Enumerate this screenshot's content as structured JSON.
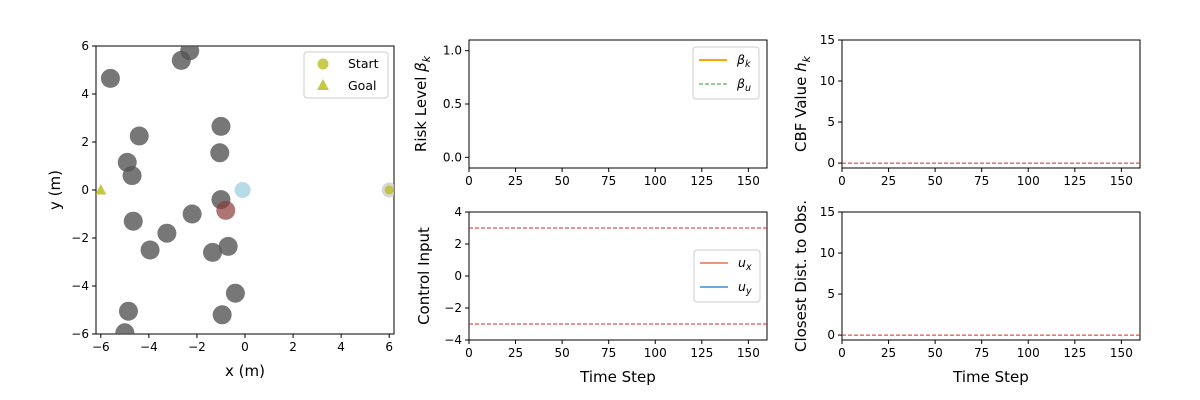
{
  "chart_data": [
    {
      "id": "map",
      "type": "scatter",
      "xlabel": "x (m)",
      "ylabel": "y (m)",
      "xlim": [
        -6.2,
        6.2
      ],
      "ylim": [
        -6,
        6
      ],
      "xticks": [
        -6,
        -4,
        -2,
        0,
        2,
        4,
        6
      ],
      "yticks": [
        -6,
        -4,
        -2,
        0,
        2,
        4,
        6
      ],
      "obstacles": [
        [
          -2.3,
          5.8
        ],
        [
          -2.65,
          5.4
        ],
        [
          -5.6,
          4.65
        ],
        [
          -4.4,
          2.25
        ],
        [
          -1.0,
          2.65
        ],
        [
          -1.05,
          1.55
        ],
        [
          -4.9,
          1.15
        ],
        [
          -4.7,
          0.6
        ],
        [
          -1.0,
          -0.4
        ],
        [
          -2.2,
          -1.0
        ],
        [
          -4.65,
          -1.3
        ],
        [
          -3.25,
          -1.8
        ],
        [
          -3.95,
          -2.5
        ],
        [
          -0.7,
          -2.35
        ],
        [
          -1.35,
          -2.6
        ],
        [
          -0.4,
          -4.3
        ],
        [
          -0.95,
          -5.2
        ],
        [
          -4.85,
          -5.05
        ],
        [
          -5.0,
          -5.95
        ]
      ],
      "moving_obstacle": [
        -0.8,
        -0.85
      ],
      "robot": [
        -0.1,
        0.0
      ],
      "colors": {
        "obstacle": "#555555",
        "moving_obstacle": "#8b3a3a",
        "robot": "#add8e6",
        "start_goal": "#bcbd22"
      },
      "legend": [
        {
          "label": "Start",
          "marker": "circle",
          "x": 6.0,
          "y": 0.0
        },
        {
          "label": "Goal",
          "marker": "triangle",
          "x": -6.0,
          "y": 0.0
        }
      ],
      "legend_position": "top-right"
    },
    {
      "id": "risk",
      "type": "line",
      "ylabel_main": "Risk Level ",
      "ylabel_sym": "β",
      "ylabel_sub": "k",
      "xlim": [
        0,
        160
      ],
      "ylim": [
        -0.1,
        1.1
      ],
      "xticks": [
        0,
        25,
        50,
        75,
        100,
        125,
        150
      ],
      "yticks": [
        "0.0",
        "0.5",
        "1.0"
      ],
      "series": [
        {
          "sym": "β",
          "sub": "k",
          "color": "#ffa500",
          "style": "solid",
          "values": []
        },
        {
          "sym": "β",
          "sub": "u",
          "color": "#2ca02c",
          "style": "dashed",
          "values": []
        }
      ],
      "legend_position": "top-right"
    },
    {
      "id": "cbf",
      "type": "line",
      "ylabel_main": "CBF Value ",
      "ylabel_sym": "h",
      "ylabel_sub": "k",
      "xlim": [
        0,
        160
      ],
      "ylim": [
        -0.6,
        15
      ],
      "xticks": [
        0,
        25,
        50,
        75,
        100,
        125,
        150
      ],
      "yticks": [
        "0",
        "5",
        "10",
        "15"
      ],
      "hlines": [
        {
          "y": 0,
          "color": "#d62728",
          "style": "dashed"
        }
      ]
    },
    {
      "id": "control",
      "type": "line",
      "xlabel": "Time Step",
      "ylabel": "Control Input",
      "xlim": [
        0,
        160
      ],
      "ylim": [
        -4,
        4
      ],
      "xticks": [
        0,
        25,
        50,
        75,
        100,
        125,
        150
      ],
      "yticks": [
        "−4",
        "−2",
        "0",
        "2",
        "4"
      ],
      "hlines": [
        {
          "y": 3,
          "color": "#d62728",
          "style": "dashed"
        },
        {
          "y": -3,
          "color": "#d62728",
          "style": "dashed"
        }
      ],
      "series": [
        {
          "sym": "u",
          "sub": "x",
          "color": "#e9967a",
          "style": "solid",
          "values": []
        },
        {
          "sym": "u",
          "sub": "y",
          "color": "#6fa8dc",
          "style": "solid",
          "values": []
        }
      ],
      "legend_position": "center-right"
    },
    {
      "id": "dist",
      "type": "line",
      "xlabel": "Time Step",
      "ylabel": "Closest Dist. to Obs.",
      "xlim": [
        0,
        160
      ],
      "ylim": [
        -0.6,
        15
      ],
      "xticks": [
        0,
        25,
        50,
        75,
        100,
        125,
        150
      ],
      "yticks": [
        "0",
        "5",
        "10",
        "15"
      ],
      "hlines": [
        {
          "y": 0,
          "color": "#d62728",
          "style": "dashed"
        }
      ]
    }
  ]
}
